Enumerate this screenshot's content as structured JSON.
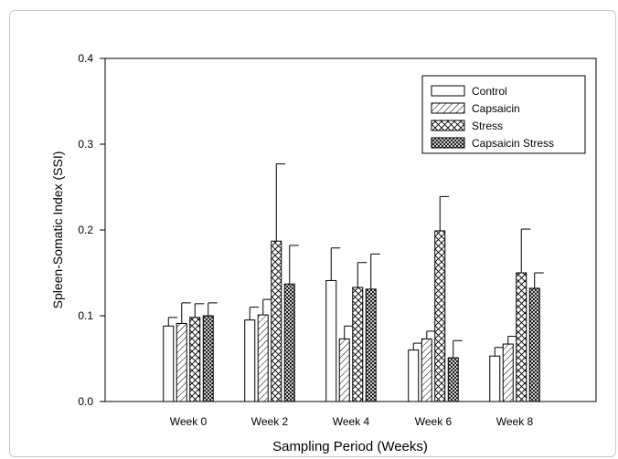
{
  "chart_data": {
    "type": "bar",
    "xlabel": "Sampling Period (Weeks)",
    "ylabel": "Spleen-Somatic Index (SSI)",
    "ylim": [
      0,
      0.4
    ],
    "yticks": [
      "0.0",
      "0.1",
      "0.2",
      "0.3",
      "0.4"
    ],
    "ytick_values": [
      0,
      0.1,
      0.2,
      0.3,
      0.4
    ],
    "categories": [
      "Week 0",
      "Week 2",
      "Week 4",
      "Week 6",
      "Week 8"
    ],
    "legend_position": "top-right",
    "series": [
      {
        "name": "Control",
        "pattern": "none",
        "values": [
          0.088,
          0.095,
          0.141,
          0.06,
          0.053
        ],
        "errors": [
          0.01,
          0.015,
          0.038,
          0.008,
          0.01
        ]
      },
      {
        "name": "Capsaicin",
        "pattern": "diagonal",
        "values": [
          0.091,
          0.101,
          0.073,
          0.073,
          0.067
        ],
        "errors": [
          0.024,
          0.018,
          0.015,
          0.009,
          0.009
        ]
      },
      {
        "name": "Stress",
        "pattern": "crosshatch",
        "values": [
          0.098,
          0.187,
          0.133,
          0.199,
          0.15
        ],
        "errors": [
          0.016,
          0.09,
          0.029,
          0.04,
          0.051
        ]
      },
      {
        "name": "Capsaicin Stress",
        "pattern": "dense-crosshatch",
        "values": [
          0.1,
          0.137,
          0.131,
          0.051,
          0.132
        ],
        "errors": [
          0.015,
          0.045,
          0.041,
          0.02,
          0.018
        ]
      }
    ]
  }
}
